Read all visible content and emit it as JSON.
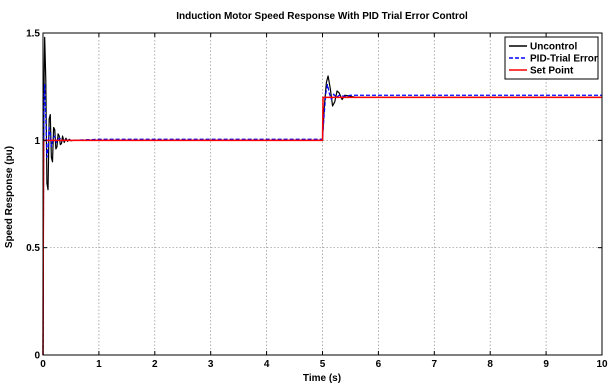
{
  "chart_data": {
    "type": "line",
    "title": "Induction Motor Speed Response With PID Trial Error Control",
    "xlabel": "Time (s)",
    "ylabel": "Speed Response (pu)",
    "xlim": [
      0,
      10
    ],
    "ylim": [
      0,
      1.5
    ],
    "xticks": [
      "0",
      "1",
      "2",
      "3",
      "4",
      "5",
      "6",
      "7",
      "8",
      "9",
      "10"
    ],
    "yticks": [
      "0",
      "0.5",
      "1",
      "1.5"
    ],
    "grid": true,
    "legend_position": "top-right",
    "series": [
      {
        "name": "Uncontrol",
        "color": "#000000",
        "style": "solid",
        "x": [
          0,
          0.005,
          0.01,
          0.02,
          0.03,
          0.05,
          0.07,
          0.09,
          0.11,
          0.13,
          0.15,
          0.17,
          0.19,
          0.21,
          0.23,
          0.25,
          0.27,
          0.29,
          0.31,
          0.33,
          0.35,
          0.38,
          0.41,
          0.44,
          0.47,
          0.5,
          0.55,
          0.6,
          1.0,
          3.2,
          5.0,
          5.03,
          5.07,
          5.1,
          5.14,
          5.18,
          5.22,
          5.26,
          5.3,
          5.35,
          5.4,
          5.5,
          5.6,
          6.0,
          10.0
        ],
        "y": [
          0.0,
          0.3,
          0.9,
          1.3,
          1.48,
          1.28,
          0.8,
          0.77,
          1.1,
          1.12,
          0.92,
          0.9,
          1.06,
          1.05,
          0.96,
          0.97,
          1.03,
          1.02,
          0.98,
          0.985,
          1.02,
          0.99,
          1.01,
          0.995,
          1.005,
          0.998,
          1.0,
          1.0,
          1.0,
          1.0,
          1.0,
          1.15,
          1.27,
          1.3,
          1.24,
          1.16,
          1.18,
          1.23,
          1.22,
          1.19,
          1.21,
          1.205,
          1.2,
          1.2,
          1.2
        ]
      },
      {
        "name": "PID-Trial Error",
        "color": "#0000ff",
        "style": "dashed",
        "x": [
          0,
          0.005,
          0.01,
          0.02,
          0.03,
          0.05,
          0.07,
          0.09,
          0.11,
          0.13,
          0.15,
          0.18,
          0.21,
          0.24,
          0.27,
          0.3,
          0.35,
          0.4,
          0.5,
          1.0,
          5.0,
          5.03,
          5.06,
          5.09,
          5.12,
          5.16,
          5.2,
          5.25,
          5.3,
          5.4,
          5.5,
          6.0,
          10.0
        ],
        "y": [
          0.0,
          0.35,
          0.9,
          1.2,
          1.26,
          1.1,
          0.92,
          0.96,
          1.06,
          1.03,
          0.97,
          1.01,
          1.02,
          0.99,
          1.005,
          1.01,
          0.998,
          1.003,
          1.0,
          1.005,
          1.005,
          1.12,
          1.22,
          1.26,
          1.22,
          1.19,
          1.215,
          1.2,
          1.21,
          1.205,
          1.21,
          1.21,
          1.21
        ]
      },
      {
        "name": "Set Point",
        "color": "#ff0000",
        "style": "solid",
        "x": [
          0,
          0.01,
          5.0,
          5.01,
          10.0
        ],
        "y": [
          0.0,
          1.0,
          1.0,
          1.2,
          1.2
        ]
      }
    ]
  }
}
